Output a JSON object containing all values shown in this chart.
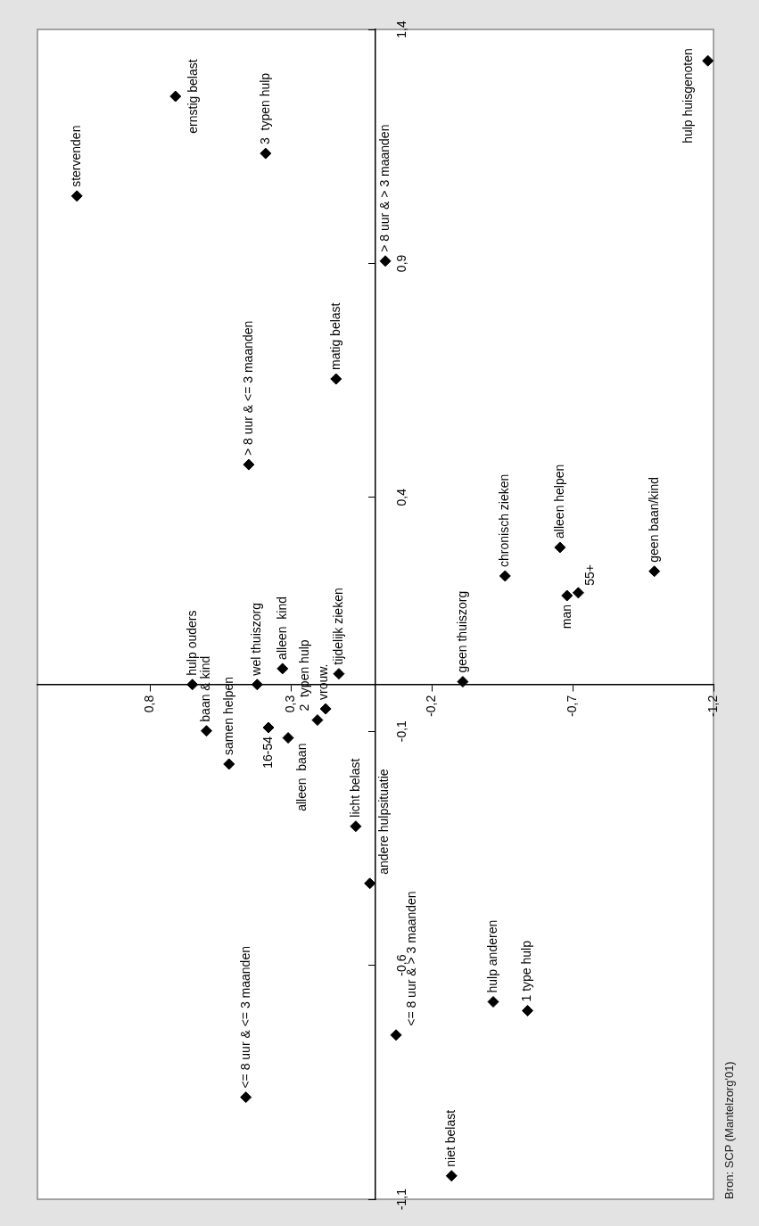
{
  "chart_data": {
    "type": "scatter",
    "color": "#000000",
    "marker": "diamond",
    "x": [
      1.06,
      0.71,
      0.39,
      -0.035,
      0.45,
      0.14,
      -1.18,
      -0.46,
      -0.655,
      -0.68,
      -0.72,
      -0.99,
      -0.31,
      0.65,
      0.42,
      0.33,
      0.13,
      0.177,
      0.206,
      0.6,
      0.38,
      0.31,
      0.52,
      0.07,
      0.02,
      0.46,
      -0.073,
      -0.418,
      -0.54,
      -0.27
    ],
    "values": [
      1.044,
      1.257,
      1.135,
      0.905,
      0.47,
      0.653,
      1.333,
      0.232,
      0.293,
      0.19,
      0.196,
      0.242,
      0.006,
      0,
      0,
      0.034,
      0.023,
      -0.052,
      -0.076,
      -0.099,
      -0.092,
      -0.114,
      -0.17,
      -0.303,
      -0.425,
      -0.882,
      -0.749,
      -0.678,
      -0.697,
      -1.05
    ],
    "xlim": [
      1.2,
      -1.2
    ],
    "xticks": [
      {
        "value": 0.8,
        "label": "0,8"
      },
      {
        "value": 0.3,
        "label": "0,3"
      },
      {
        "value": -0.2,
        "label": "-0,2"
      },
      {
        "value": -0.7,
        "label": "-0,7"
      },
      {
        "value": -1.2,
        "label": "-1,2"
      }
    ],
    "ylim": [
      -1.1,
      1.4
    ],
    "yticks": [
      {
        "value": -1.1,
        "label": "-1,1"
      },
      {
        "value": -0.6,
        "label": "-0,6"
      },
      {
        "value": -0.1,
        "label": "-0,1"
      },
      {
        "value": 0.4,
        "label": "0,4"
      },
      {
        "value": 0.9,
        "label": "0,9"
      },
      {
        "value": 1.4,
        "label": "1,4"
      }
    ],
    "annotations": [
      {
        "text": "stervenden",
        "x": 1.06,
        "y": 1.044
      },
      {
        "text": "ernstig belast",
        "x": 0.71,
        "y": 1.257
      },
      {
        "text": "3  typen hulp",
        "x": 0.39,
        "y": 1.135
      },
      {
        "text": "> 8 uur & > 3 maanden",
        "x": -0.035,
        "y": 0.905
      },
      {
        "text": "> 8 uur & <= 3 maanden",
        "x": 0.45,
        "y": 0.47
      },
      {
        "text": "matig belast",
        "x": 0.14,
        "y": 0.653
      },
      {
        "text": "hulp huisgenoten",
        "x": -1.18,
        "y": 1.333
      },
      {
        "text": "chronisch zieken",
        "x": -0.46,
        "y": 0.232
      },
      {
        "text": "alleen helpen",
        "x": -0.655,
        "y": 0.293
      },
      {
        "text": "man",
        "x": -0.68,
        "y": 0.19
      },
      {
        "text": "55+",
        "x": -0.72,
        "y": 0.196
      },
      {
        "text": "geen baan/kind",
        "x": -0.99,
        "y": 0.242
      },
      {
        "text": "geen thuiszorg",
        "x": -0.31,
        "y": 0.006
      },
      {
        "text": "hulp ouders",
        "x": 0.65,
        "y": 0
      },
      {
        "text": "wel thuiszorg",
        "x": 0.42,
        "y": 0
      },
      {
        "text": "alleen  kind",
        "x": 0.33,
        "y": 0.034
      },
      {
        "text": "tijdelijk zieken",
        "x": 0.13,
        "y": 0.023
      },
      {
        "text": "vrouw.",
        "x": 0.177,
        "y": -0.052
      },
      {
        "text": "2  typen hulp",
        "x": 0.206,
        "y": -0.076
      },
      {
        "text": "baan & kind",
        "x": 0.6,
        "y": -0.099
      },
      {
        "text": "16-54",
        "x": 0.38,
        "y": -0.092
      },
      {
        "text": "alleen  baan",
        "x": 0.31,
        "y": -0.114
      },
      {
        "text": "samen helpen",
        "x": 0.52,
        "y": -0.17
      },
      {
        "text": "licht belast",
        "x": 0.07,
        "y": -0.303
      },
      {
        "text": "andere hulpsituatie",
        "x": 0.02,
        "y": -0.425
      },
      {
        "text": "<= 8 uur & <= 3 maanden",
        "x": 0.46,
        "y": -0.882
      },
      {
        "text": "<= 8 uur & > 3 maanden",
        "x": -0.073,
        "y": -0.749
      },
      {
        "text": "hulp anderen",
        "x": -0.418,
        "y": -0.678
      },
      {
        "text": "1 type hulp",
        "x": -0.54,
        "y": -0.697
      },
      {
        "text": "niet belast",
        "x": -0.27,
        "y": -1.05
      },
      "Bron: SCP (Mantelzorg'01)"
    ]
  }
}
